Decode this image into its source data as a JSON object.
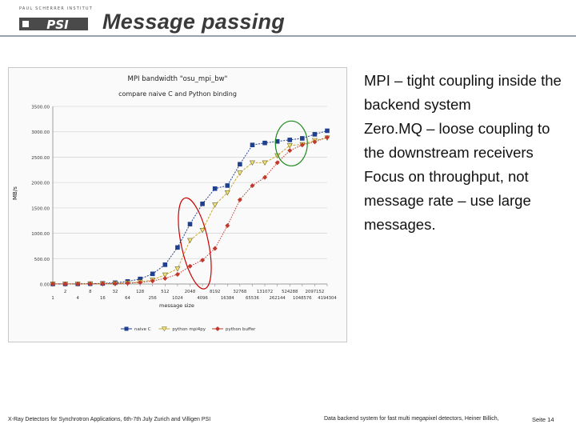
{
  "logo": {
    "text": "PAUL SCHERRER INSTITUT",
    "mark": "PSI"
  },
  "title": "Message passing",
  "bullets": [
    "MPI – tight coupling inside the backend system",
    "Zero.MQ – loose coupling to the downstream receivers",
    "Focus on throughput, not message rate – use large messages."
  ],
  "footer": {
    "left": "X-Ray Detectors for Synchrotron Applications, 6th-7th July Zurich and Villigen PSI",
    "mid": "Data backend system for fast multi megapixel detectors, Heiner Billich,",
    "right": "Seite 14"
  },
  "colors": {
    "series1": "#1f3f8f",
    "series2": "#c8a830",
    "series3": "#c0392b",
    "ellipse_red": "#cc0000",
    "ellipse_green": "#1e8a1e"
  },
  "chart_data": {
    "type": "line",
    "title": "MPI bandwidth \"osu_mpi_bw\"",
    "subtitle": "compare naive C and Python binding",
    "xlabel": "message size",
    "ylabel": "MB/s",
    "ylim": [
      0,
      3500
    ],
    "yticks": [
      "0.00",
      "500.00",
      "1000.00",
      "1500.00",
      "2000.00",
      "2500.00",
      "3000.00",
      "3500.00"
    ],
    "categories": [
      "1",
      "2",
      "4",
      "8",
      "16",
      "32",
      "64",
      "128",
      "256",
      "512",
      "1024",
      "2048",
      "4096",
      "8192",
      "16384",
      "32768",
      "65536",
      "131072",
      "262144",
      "524288",
      "1048576",
      "2097152",
      "4194304"
    ],
    "categories_top": [
      "2",
      "8",
      "32",
      "128",
      "512",
      "2048",
      "8192",
      "32768",
      "131072",
      "524288",
      "2097152"
    ],
    "categories_bottom": [
      "1",
      "4",
      "16",
      "64",
      "256",
      "1024",
      "4096",
      "16384",
      "65536",
      "262144",
      "1048576",
      "4194304"
    ],
    "series": [
      {
        "name": "naive C",
        "marker": "square",
        "values": [
          1,
          2,
          3,
          6,
          12,
          25,
          50,
          100,
          200,
          380,
          720,
          1180,
          1580,
          1880,
          1940,
          2360,
          2740,
          2780,
          2810,
          2840,
          2870,
          2950,
          3020
        ]
      },
      {
        "name": "python mpi4py",
        "marker": "triangle",
        "values": [
          1,
          1,
          2,
          3,
          5,
          10,
          20,
          40,
          80,
          180,
          300,
          860,
          1060,
          1560,
          1800,
          2190,
          2390,
          2390,
          2530,
          2730,
          2750,
          2830,
          2880
        ]
      },
      {
        "name": "python buffer",
        "marker": "diamond",
        "values": [
          1,
          1,
          2,
          3,
          5,
          8,
          15,
          30,
          60,
          110,
          190,
          350,
          470,
          700,
          1150,
          1660,
          1940,
          2100,
          2390,
          2630,
          2740,
          2800,
          2890
        ]
      }
    ],
    "legend": "bottom",
    "legend_labels": [
      "naive C",
      "python mpi4py",
      "python buffer"
    ]
  }
}
